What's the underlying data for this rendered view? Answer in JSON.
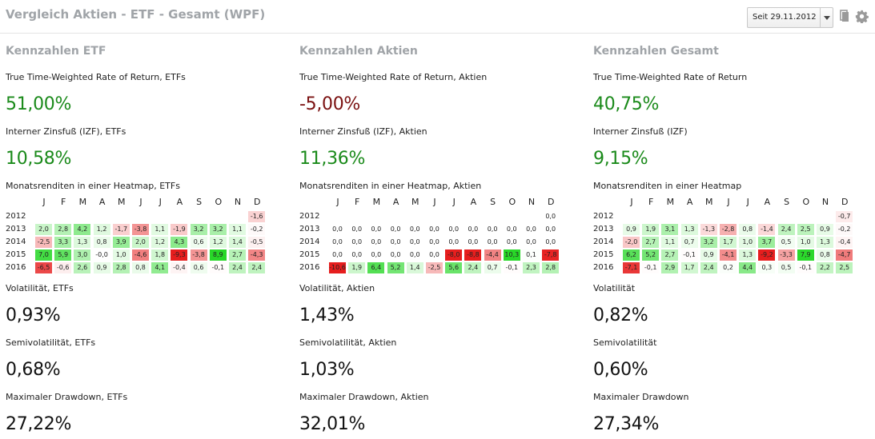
{
  "header": {
    "title": "Vergleich Aktien - ETF - Gesamt (WPF)",
    "date_select": "Seit 29.11.2012",
    "icons": [
      "dropdown-arrow-icon",
      "copy-icon",
      "gear-icon"
    ]
  },
  "colors": {
    "positive": "#1a8a1a",
    "negative": "#7a1010",
    "neutral": "#222222",
    "title_gray": "#a0a4a8"
  },
  "months": [
    "J",
    "F",
    "M",
    "A",
    "M",
    "J",
    "J",
    "A",
    "S",
    "O",
    "N",
    "D"
  ],
  "years": [
    "2012",
    "2013",
    "2014",
    "2015",
    "2016"
  ],
  "panels": [
    {
      "title": "Kennzahlen ETF",
      "twr_label": "True Time-Weighted Rate of Return, ETFs",
      "twr_value": "51,00%",
      "twr_sign": "positive",
      "izf_label": "Interner Zinsfuß (IZF), ETFs",
      "izf_value": "10,58%",
      "izf_sign": "positive",
      "heatmap_label": "Monatsrenditen in einer Heatmap, ETFs",
      "heatmap": [
        [
          null,
          null,
          null,
          null,
          null,
          null,
          null,
          null,
          null,
          null,
          null,
          "-1,6"
        ],
        [
          "2,0",
          "2,8",
          "4,2",
          "1,2",
          "-1,7",
          "-3,8",
          "1,1",
          "-1,9",
          "3,2",
          "3,2",
          "1,1",
          "-0,2"
        ],
        [
          "-2,5",
          "3,3",
          "1,3",
          "0,8",
          "3,9",
          "2,0",
          "1,2",
          "4,3",
          "0,6",
          "1,2",
          "1,4",
          "-0,5"
        ],
        [
          "7,0",
          "5,9",
          "3,0",
          "-0,0",
          "1,0",
          "-4,6",
          "1,8",
          "-9,3",
          "-3,8",
          "8,9",
          "2,7",
          "-4,3"
        ],
        [
          "-6,5",
          "-0,6",
          "2,6",
          "0,9",
          "2,8",
          "0,8",
          "4,1",
          "-0,4",
          "0,6",
          "-0,1",
          "2,4",
          "2,4"
        ]
      ],
      "vol_label": "Volatilität, ETFs",
      "vol_value": "0,93%",
      "semivol_label": "Semivolatilität, ETFs",
      "semivol_value": "0,68%",
      "dd_label": "Maximaler Drawdown, ETFs",
      "dd_value": "27,22%"
    },
    {
      "title": "Kennzahlen Aktien",
      "twr_label": "True Time-Weighted Rate of Return, Aktien",
      "twr_value": "-5,00%",
      "twr_sign": "negative",
      "izf_label": "Interner Zinsfuß (IZF), Aktien",
      "izf_value": "11,36%",
      "izf_sign": "positive",
      "heatmap_label": "Monatsrenditen in einer Heatmap, Aktien",
      "heatmap": [
        [
          null,
          null,
          null,
          null,
          null,
          null,
          null,
          null,
          null,
          null,
          null,
          "0,0"
        ],
        [
          "0,0",
          "0,0",
          "0,0",
          "0,0",
          "0,0",
          "0,0",
          "0,0",
          "0,0",
          "0,0",
          "0,0",
          "0,0",
          "0,0"
        ],
        [
          "0,0",
          "0,0",
          "0,0",
          "0,0",
          "0,0",
          "0,0",
          "0,0",
          "0,0",
          "0,0",
          "0,0",
          "0,0",
          "0,0"
        ],
        [
          "0,0",
          "0,0",
          "0,0",
          "0,0",
          "0,0",
          "0,0",
          "-8,0",
          "-8,8",
          "-4,4",
          "10,3",
          "0,1",
          "-7,8"
        ],
        [
          "-10,6",
          "1,9",
          "6,4",
          "5,2",
          "1,4",
          "-2,5",
          "5,6",
          "2,4",
          "0,7",
          "-0,1",
          "2,3",
          "2,8"
        ]
      ],
      "vol_label": "Volatilität, Aktien",
      "vol_value": "1,43%",
      "semivol_label": "Semivolatilität, Aktien",
      "semivol_value": "1,03%",
      "dd_label": "Maximaler Drawdown, Aktien",
      "dd_value": "32,01%"
    },
    {
      "title": "Kennzahlen Gesamt",
      "twr_label": "True Time-Weighted Rate of Return",
      "twr_value": "40,75%",
      "twr_sign": "positive",
      "izf_label": "Interner Zinsfuß (IZF)",
      "izf_value": "9,15%",
      "izf_sign": "positive",
      "heatmap_label": "Monatsrenditen in einer Heatmap",
      "heatmap": [
        [
          null,
          null,
          null,
          null,
          null,
          null,
          null,
          null,
          null,
          null,
          null,
          "-0,7"
        ],
        [
          "0,9",
          "1,9",
          "3,1",
          "1,3",
          "-1,3",
          "-2,8",
          "0,8",
          "-1,4",
          "2,4",
          "2,5",
          "0,9",
          "-0,2"
        ],
        [
          "-2,0",
          "2,7",
          "1,1",
          "0,7",
          "3,2",
          "1,7",
          "1,0",
          "3,7",
          "0,5",
          "1,0",
          "1,3",
          "-0,4"
        ],
        [
          "6,2",
          "5,2",
          "2,7",
          "-0,1",
          "0,9",
          "-4,1",
          "1,3",
          "-9,2",
          "-3,3",
          "7,9",
          "0,8",
          "-4,7"
        ],
        [
          "-7,1",
          "-0,1",
          "2,9",
          "1,7",
          "2,4",
          "0,2",
          "4,4",
          "0,3",
          "0,5",
          "-0,1",
          "2,2",
          "2,5"
        ]
      ],
      "vol_label": "Volatilität",
      "vol_value": "0,82%",
      "semivol_label": "Semivolatilität",
      "semivol_value": "0,60%",
      "dd_label": "Maximaler Drawdown",
      "dd_value": "27,34%"
    }
  ]
}
